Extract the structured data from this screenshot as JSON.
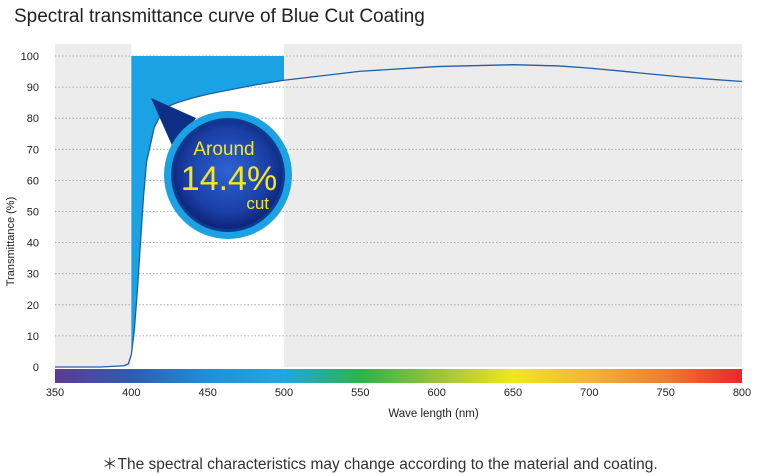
{
  "chart_data": {
    "type": "line",
    "title": "Spectral transmittance curve of Blue Cut Coating",
    "xlabel": "Wave length (nm)",
    "ylabel": "Transmittance (%)",
    "xlim": [
      350,
      800
    ],
    "ylim": [
      0,
      100
    ],
    "x_ticks": [
      350,
      400,
      450,
      500,
      550,
      600,
      650,
      700,
      750,
      800
    ],
    "y_ticks": [
      0,
      10,
      20,
      30,
      40,
      50,
      60,
      70,
      80,
      90,
      100
    ],
    "grid": "horizontal dotted",
    "series": [
      {
        "x": [
          350,
          380,
          395,
          398,
          400,
          402,
          404,
          406,
          408,
          410,
          415,
          420,
          425,
          430,
          440,
          450,
          460,
          480,
          500,
          550,
          600,
          650,
          680,
          700,
          720,
          740,
          760,
          780,
          800
        ],
        "values": [
          0,
          0,
          0.4,
          1,
          4,
          12,
          25,
          40,
          55,
          66,
          77,
          82,
          84,
          85,
          86.5,
          87.7,
          88.7,
          90.6,
          92.2,
          95.1,
          96.6,
          97.2,
          96.8,
          96.1,
          95.2,
          94.2,
          93.3,
          92.5,
          91.8
        ]
      }
    ],
    "shaded_band": {
      "x_range": [
        400,
        500
      ],
      "color": "#ffffff"
    },
    "blue_cut_fill": {
      "x_range": [
        400,
        500
      ],
      "upper": 100,
      "color": "#1aa2e4"
    },
    "line_color": "#1e5fa6",
    "plot_background": "#ececec",
    "spectrum_bar": [
      "#5d3b93",
      "#2f5cb0",
      "#1f8fd8",
      "#22a7df",
      "#2bb34a",
      "#9ac33a",
      "#f0e620",
      "#f4b33b",
      "#ee7d30",
      "#e8262a"
    ],
    "callout": {
      "line1": "Around",
      "value": "14.4%",
      "line3": "cut",
      "text_color": "#f5e61e"
    }
  },
  "footnote": "＊The spectral characteristics may change according to the material and coating."
}
